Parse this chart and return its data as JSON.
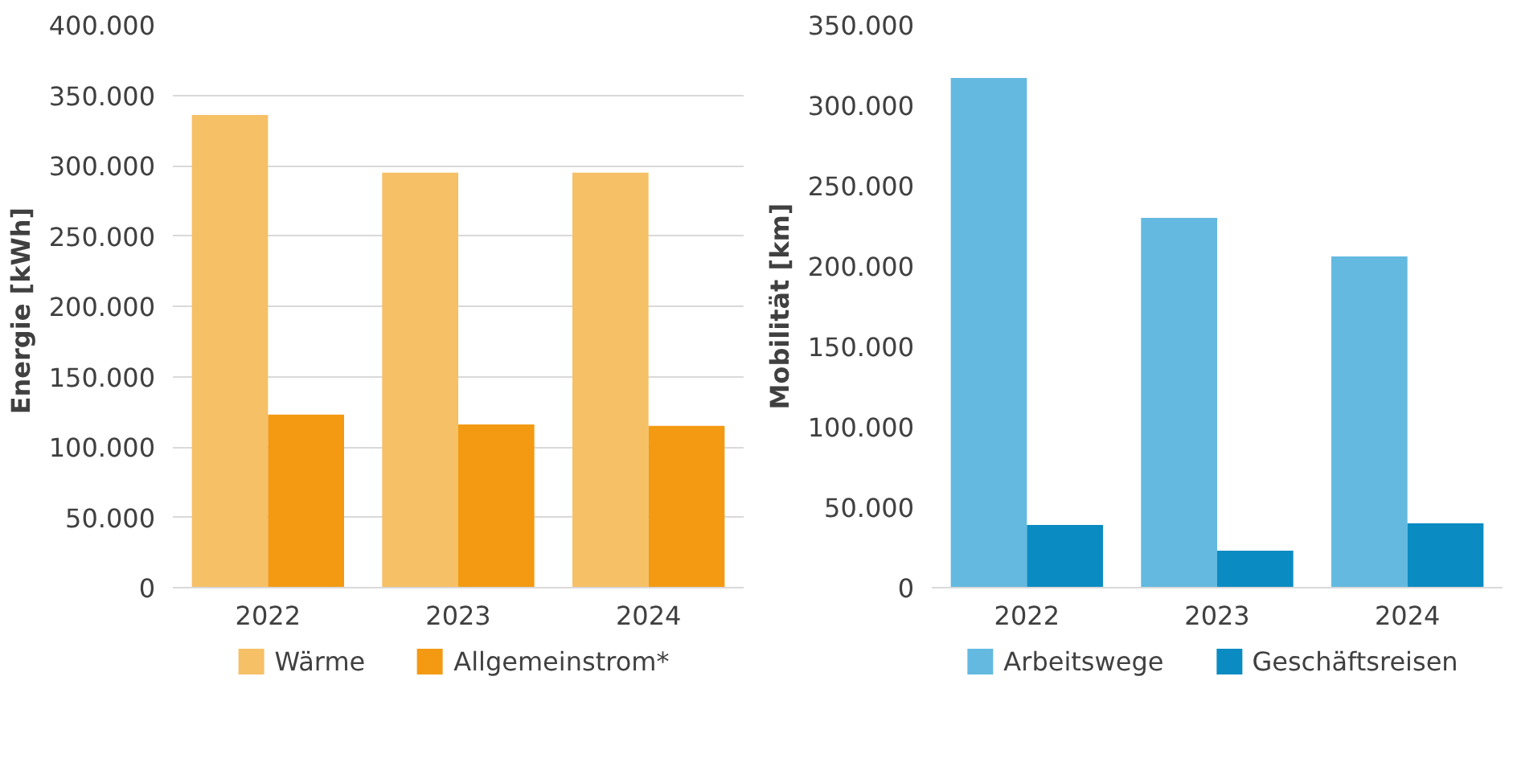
{
  "chart_data": [
    {
      "type": "bar",
      "ylabel": "Energie  [kWh]",
      "categories": [
        "2022",
        "2023",
        "2024"
      ],
      "series": [
        {
          "name": "Wärme",
          "color": "#f6c066",
          "values": [
            336000,
            295000,
            295000
          ]
        },
        {
          "name": "Allgemeinstrom*",
          "color": "#f39a12",
          "values": [
            123000,
            116000,
            115000
          ]
        }
      ],
      "ylim": [
        0,
        400000
      ],
      "yticks": [
        {
          "value": 0,
          "label": "0"
        },
        {
          "value": 50000,
          "label": "50.000"
        },
        {
          "value": 100000,
          "label": "100.000"
        },
        {
          "value": 150000,
          "label": "150.000"
        },
        {
          "value": 200000,
          "label": "200.000"
        },
        {
          "value": 250000,
          "label": "250.000"
        },
        {
          "value": 300000,
          "label": "300.000"
        },
        {
          "value": 350000,
          "label": "350.000"
        },
        {
          "value": 400000,
          "label": "400.000"
        }
      ],
      "grid": "y",
      "legend": "bottom"
    },
    {
      "type": "bar",
      "ylabel": "Mobilität [km]",
      "categories": [
        "2022",
        "2023",
        "2024"
      ],
      "series": [
        {
          "name": "Arbeitswege",
          "color": "#63b9e0",
          "values": [
            317000,
            230000,
            206000
          ]
        },
        {
          "name": "Geschäftsreisen",
          "color": "#0a8bc2",
          "values": [
            39000,
            23000,
            40000
          ]
        }
      ],
      "ylim": [
        0,
        350000
      ],
      "yticks": [
        {
          "value": 0,
          "label": "0"
        },
        {
          "value": 50000,
          "label": "50.000"
        },
        {
          "value": 100000,
          "label": "100.000"
        },
        {
          "value": 150000,
          "label": "150.000"
        },
        {
          "value": 200000,
          "label": "200.000"
        },
        {
          "value": 250000,
          "label": "250.000"
        },
        {
          "value": 300000,
          "label": "300.000"
        },
        {
          "value": 350000,
          "label": "350.000"
        }
      ],
      "grid": false,
      "legend": "bottom"
    }
  ]
}
